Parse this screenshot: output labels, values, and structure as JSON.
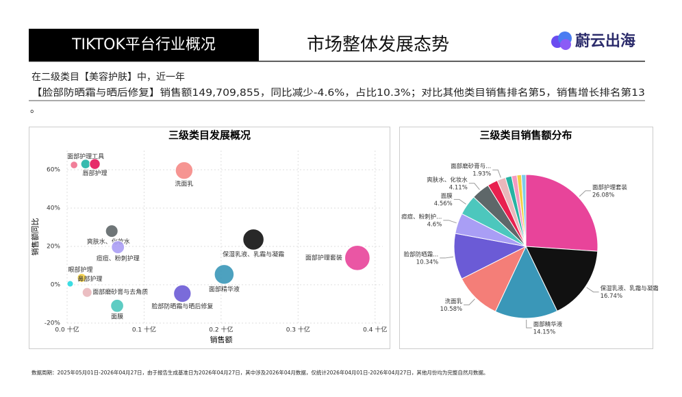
{
  "header": {
    "badge": "TIKTOK平台行业概况",
    "title": "市场整体发展态势",
    "logo": "蔚云出海"
  },
  "description": [
    "在二级类目【美容护肤】中，近一年",
    "【脸部防晒霜与晒后修复】销售额149,709,855，同比减少-4.6%，占比10.3%；对比其他类目销售排名第5，销售增长排名第13",
    "。"
  ],
  "chart_data": [
    {
      "type": "scatter",
      "title": "三级类目发展概况",
      "x_label": "销售额",
      "y_label": "销售额同比",
      "labels": [
        "面部护理工具",
        null,
        "唇部护理",
        "洗面乳",
        "爽肤水、化妆水",
        "痘痘、粉刺护理",
        "保湿乳液、乳霜与凝霜",
        "面部护理套装",
        "面部精华液",
        "脸部防晒霜与晒后修复",
        "面膜",
        "面部磨砂膏与去角质",
        "眼部护理",
        "鼻部护理"
      ],
      "x": [
        0.009,
        0.024,
        0.036,
        0.152,
        0.058,
        0.066,
        0.242,
        0.377,
        0.204,
        0.1497,
        0.065,
        0.026,
        0.004,
        0.019
      ],
      "values": [
        62.5,
        63,
        63,
        59.6,
        28,
        19.6,
        23.6,
        14,
        5.4,
        -4.6,
        -11,
        -4,
        0.5,
        3.6
      ],
      "colors": [
        "#f0708e",
        "#22b2a6",
        "#e3155a",
        "#f58a86",
        "#5f6769",
        "#ab9ff5",
        "#111111",
        "#e8449a",
        "#3a97b8",
        "#6b5bd6",
        "#4cc7bd",
        "#e9b7bb",
        "#27d9e0",
        "#f3cf46"
      ],
      "xlim": [
        0,
        0.41
      ],
      "ylim": [
        -20,
        70
      ],
      "xticks": [
        {
          "value": 0,
          "label": "0.0 十亿"
        },
        {
          "value": 0.1,
          "label": "0.1 十亿"
        },
        {
          "value": 0.2,
          "label": "0.2 十亿"
        },
        {
          "value": 0.3,
          "label": "0.3 十亿"
        },
        {
          "value": 0.4,
          "label": "0.4 十亿"
        }
      ],
      "yticks": [
        {
          "value": -20,
          "label": "-20%"
        },
        {
          "value": 0,
          "label": "0%"
        },
        {
          "value": 20,
          "label": "20%"
        },
        {
          "value": 40,
          "label": "40%"
        },
        {
          "value": 60,
          "label": "60%"
        }
      ],
      "grid": true
    },
    {
      "type": "pie",
      "title": "三级类目销售额分布",
      "categories": [
        "面部护理套装",
        "保湿乳液、乳霜与凝霜",
        "面部精华液",
        "洗面乳",
        "脸部防晒霜...",
        "痘痘、粉刺护...",
        "面膜",
        "爽肤水、化妆水",
        null,
        "面部磨砂膏与...",
        null,
        null,
        null,
        null
      ],
      "values": [
        26.08,
        16.74,
        14.15,
        10.58,
        10.34,
        4.6,
        4.56,
        4.11,
        2.3,
        1.93,
        1.4,
        1.2,
        1.0,
        1.0
      ],
      "value_labels": [
        "26.08%",
        "16.74%",
        "14.15%",
        "10.58%",
        "10.34%",
        "4.6%",
        "4.56%",
        "4.11%",
        null,
        "1.93%",
        null,
        null,
        null,
        null
      ],
      "colors": [
        "#e8449a",
        "#111111",
        "#3a97b8",
        "#f47e78",
        "#6b5bd6",
        "#a99ef5",
        "#4cc7bd",
        "#5e6769",
        "#e8204f",
        "#e9b7bb",
        "#26b3a3",
        "#f59ac0",
        "#f3cf46",
        "#7ecbe8"
      ]
    }
  ],
  "footer": "数据周期：2025年05月01日-2026年04月27日，由于报告生成基准日为2026年04月27日，其中涉及2026年04月数据，仅统计2026年04月01日-2026年04月27日，其他月份均为完整自然月数据。"
}
